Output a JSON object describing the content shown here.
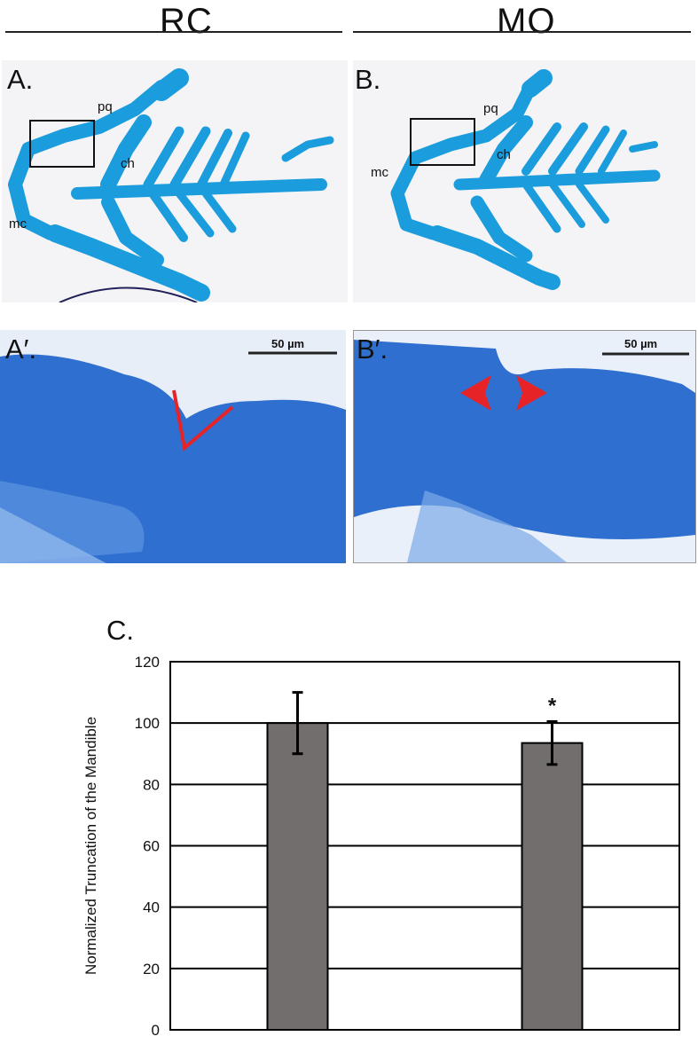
{
  "columns": {
    "left_label": "RC",
    "right_label": "MO"
  },
  "panels": {
    "a": {
      "letter": "A.",
      "labels": {
        "pq": "pq",
        "ch": "ch",
        "mc": "mc"
      }
    },
    "b": {
      "letter": "B.",
      "labels": {
        "pq": "pq",
        "ch": "ch",
        "mc": "mc"
      }
    },
    "a_prime": {
      "letter": "A′.",
      "scale_label": "50 µm"
    },
    "b_prime": {
      "letter": "B′.",
      "scale_label": "50 µm"
    },
    "c": {
      "letter": "C."
    }
  },
  "colors": {
    "cartilage": "#1b9cdc",
    "tissue": "#2f6fd0",
    "bar": "#736e6e",
    "annotation_red": "#e62428"
  },
  "chart_data": {
    "type": "bar",
    "categories": [
      "RC",
      "MO"
    ],
    "values": [
      100,
      93.5
    ],
    "errors": [
      10,
      7
    ],
    "significance": [
      "",
      "*"
    ],
    "ylabel": "Normalized Truncation of the Mandible",
    "xlabel": "",
    "ylim": [
      0,
      120
    ],
    "yticks": [
      0,
      20,
      40,
      60,
      80,
      100,
      120
    ],
    "grid": true
  }
}
